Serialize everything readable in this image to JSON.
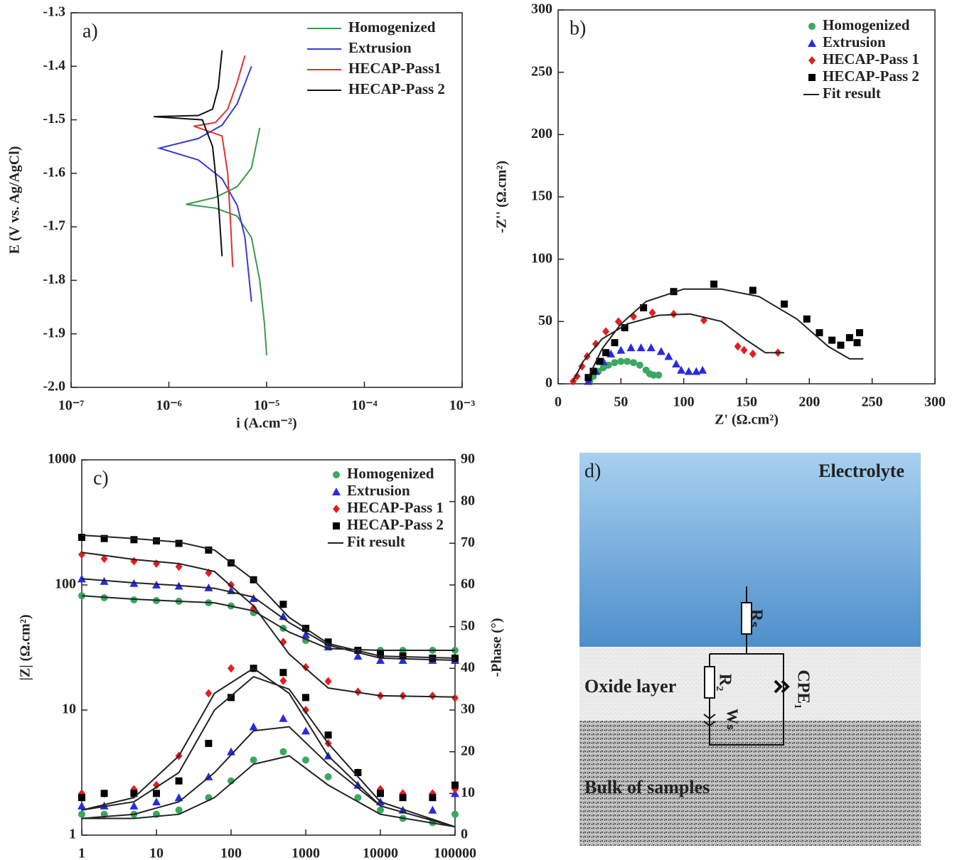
{
  "chart_data": [
    {
      "type": "line",
      "panel_label": "a)",
      "xscale": "log",
      "legend": "upper right",
      "x_label": "i (A.cm⁻²)",
      "y_label": "E (V vs. Ag/AgCl)",
      "xlim": [
        1e-07,
        0.001
      ],
      "ylim": [
        -2,
        -1.3
      ],
      "xticks": [
        {
          "value": 1e-07,
          "label": "10⁻⁷"
        },
        {
          "value": 1e-06,
          "label": "10⁻⁶"
        },
        {
          "value": 1e-05,
          "label": "10⁻⁵"
        },
        {
          "value": 0.0001,
          "label": "10⁻⁴"
        },
        {
          "value": 0.001,
          "label": "10⁻³"
        }
      ],
      "yticks": [
        {
          "value": -2,
          "label": "-2.0"
        },
        -1.9,
        -1.8,
        -1.7,
        -1.6,
        -1.5,
        -1.4,
        -1.3
      ],
      "series": [
        {
          "name": "Homogenized",
          "color": "#3a9a4a",
          "x": [
            8.5e-06,
            7e-06,
            5e-06,
            3e-06,
            1.5e-06,
            3e-06,
            5e-06,
            7e-06,
            8.5e-06,
            9.5e-06,
            1e-05
          ],
          "values": [
            -1.515,
            -1.59,
            -1.625,
            -1.645,
            -1.658,
            -1.665,
            -1.68,
            -1.72,
            -1.8,
            -1.88,
            -1.94
          ]
        },
        {
          "name": "Extrusion",
          "color": "#3a3ad0",
          "x": [
            7e-06,
            5e-06,
            3.5e-06,
            2e-06,
            8e-07,
            2e-06,
            3.5e-06,
            5e-06,
            6e-06,
            7e-06
          ],
          "values": [
            -1.4,
            -1.47,
            -1.51,
            -1.535,
            -1.553,
            -1.575,
            -1.61,
            -1.66,
            -1.72,
            -1.84
          ]
        },
        {
          "name": "HECAP-Pass1",
          "color": "#e03030",
          "x": [
            6e-06,
            5e-06,
            4e-06,
            3e-06,
            1.8e-06,
            3.5e-06,
            4e-06,
            4.3e-06,
            4.5e-06
          ],
          "values": [
            -1.38,
            -1.43,
            -1.48,
            -1.505,
            -1.512,
            -1.53,
            -1.6,
            -1.7,
            -1.775
          ]
        },
        {
          "name": "HECAP-Pass 2",
          "color": "#111111",
          "x": [
            3.5e-06,
            3.2e-06,
            2.8e-06,
            2e-06,
            7e-07,
            2.2e-06,
            2.8e-06,
            3.2e-06,
            3.5e-06
          ],
          "values": [
            -1.37,
            -1.44,
            -1.48,
            -1.492,
            -1.494,
            -1.5,
            -1.55,
            -1.65,
            -1.755
          ]
        }
      ]
    },
    {
      "type": "scatter",
      "panel_label": "b)",
      "legend": "upper right",
      "x_label": "Z' (Ω.cm²)",
      "y_label": "-Z'' (Ω.cm²)",
      "xlim": [
        0,
        300
      ],
      "ylim": [
        0,
        300
      ],
      "xticks": [
        0,
        50,
        100,
        150,
        200,
        250,
        300
      ],
      "yticks": [
        0,
        50,
        100,
        150,
        200,
        250,
        300
      ],
      "series": [
        {
          "name": "Homogenized",
          "color": "#3aa860",
          "marker": "circle",
          "x": [
            25,
            28,
            32,
            36,
            40,
            45,
            50,
            55,
            60,
            65,
            70,
            73,
            76,
            80
          ],
          "values": [
            2,
            6,
            10,
            13,
            15,
            17,
            18,
            18,
            17,
            15,
            11,
            8,
            7,
            7
          ]
        },
        {
          "name": "Extrusion",
          "color": "#2a2ae0",
          "marker": "triangle",
          "x": [
            24,
            30,
            36,
            42,
            50,
            58,
            66,
            74,
            82,
            88,
            94,
            98,
            104,
            110,
            115
          ],
          "values": [
            2,
            10,
            18,
            24,
            27,
            29,
            29,
            29,
            26,
            22,
            16,
            11,
            10,
            10,
            11
          ]
        },
        {
          "name": "HECAP-Pass 1",
          "color": "#e02020",
          "marker": "diamond",
          "x": [
            12,
            15,
            19,
            23,
            30,
            38,
            48,
            60,
            75,
            92,
            116,
            143,
            148,
            155,
            175
          ],
          "values": [
            2,
            6,
            14,
            22,
            32,
            42,
            50,
            54,
            57,
            56,
            51,
            30,
            27,
            24,
            25
          ]
        },
        {
          "name": "HECAP-Pass 2",
          "color": "#000000",
          "marker": "square",
          "x": [
            24,
            28,
            33,
            38,
            45,
            53,
            68,
            92,
            124,
            155,
            180,
            198,
            208,
            218,
            225,
            232,
            238,
            240
          ],
          "values": [
            5,
            10,
            18,
            25,
            33,
            45,
            61,
            74,
            80,
            75,
            64,
            52,
            41,
            35,
            31,
            37,
            33,
            41
          ]
        },
        {
          "name": "Fit result",
          "color": "#222222",
          "marker": "none",
          "x": [
            24,
            35,
            50,
            70,
            100,
            130,
            160,
            190,
            215,
            232,
            243,
            null,
            12,
            20,
            35,
            55,
            80,
            105,
            130,
            150,
            165,
            180
          ],
          "values": [
            5,
            28,
            48,
            66,
            76,
            76,
            70,
            52,
            30,
            20,
            20,
            null,
            2,
            18,
            36,
            48,
            55,
            56,
            50,
            35,
            25,
            25
          ]
        }
      ]
    },
    {
      "type": "scatter",
      "panel_label": "c)",
      "xscale": "log",
      "yscale": "log",
      "legend": "upper right",
      "y_label": "|Z| (Ω.cm²)",
      "y2_label": "-Phase (°)",
      "xlim": [
        1,
        100000
      ],
      "ylim": [
        1,
        1000
      ],
      "y2lim": [
        0,
        90
      ],
      "xticks": [
        1,
        10,
        100,
        1000,
        10000,
        100000
      ],
      "yticks": [
        1,
        10,
        100,
        1000
      ],
      "y2ticks": [
        0,
        10,
        20,
        30,
        40,
        50,
        60,
        70,
        80,
        90
      ],
      "x": [
        1,
        2,
        5,
        10,
        20,
        50,
        100,
        200,
        500,
        1000,
        2000,
        5000,
        10000,
        20000,
        50000,
        100000
      ],
      "series": [
        {
          "name": "Homogenized",
          "color": "#3aa860",
          "marker": "circle",
          "values": [
            82,
            79,
            76,
            75,
            74,
            72,
            68,
            60,
            45,
            36,
            32,
            30,
            30,
            30,
            30,
            30
          ],
          "values_y2": [
            5,
            5,
            5,
            5,
            6,
            9,
            13,
            18,
            20,
            18,
            14,
            9,
            6,
            4,
            3,
            5
          ]
        },
        {
          "name": "Extrusion",
          "color": "#2a2ae0",
          "marker": "triangle",
          "values": [
            112,
            107,
            103,
            100,
            98,
            95,
            90,
            78,
            56,
            40,
            32,
            27,
            25,
            25,
            25,
            25
          ],
          "values_y2": [
            7,
            7,
            7,
            8,
            9,
            14,
            20,
            26,
            28,
            25,
            19,
            12,
            8,
            6,
            6,
            10
          ]
        },
        {
          "name": "HECAP-Pass 1",
          "color": "#e02020",
          "marker": "diamond",
          "values": [
            175,
            162,
            155,
            148,
            140,
            125,
            100,
            65,
            35,
            22,
            17,
            14,
            13,
            13,
            13,
            12.5
          ],
          "values_y2": [
            10,
            10,
            11,
            12,
            19,
            34,
            40,
            40,
            37,
            30,
            22,
            15,
            11,
            10,
            10,
            11
          ]
        },
        {
          "name": "HECAP-Pass 2",
          "color": "#000000",
          "marker": "square",
          "values": [
            240,
            235,
            230,
            225,
            215,
            190,
            150,
            110,
            70,
            45,
            35,
            30,
            28,
            27,
            26,
            26
          ],
          "values_y2": [
            9,
            10,
            10,
            10,
            13,
            22,
            33,
            40,
            39,
            33,
            24,
            15,
            10,
            9,
            9,
            12
          ]
        },
        {
          "name": "Fit result",
          "color": "#222222",
          "marker": "none",
          "x": [
            1,
            5,
            20,
            60,
            200,
            600,
            2000,
            10000,
            100000,
            null,
            1,
            5,
            20,
            60,
            200,
            600,
            2000,
            10000,
            100000,
            null,
            1,
            5,
            20,
            60,
            200,
            600,
            2000,
            10000,
            100000,
            null,
            1,
            5,
            20,
            60,
            200,
            600,
            2000,
            10000,
            100000
          ],
          "values": [
            82,
            77,
            74,
            72,
            62,
            42,
            31,
            30,
            30,
            null,
            112,
            104,
            99,
            94,
            80,
            50,
            33,
            26,
            25,
            null,
            182,
            160,
            148,
            128,
            68,
            28,
            15,
            13,
            12.7,
            null,
            250,
            235,
            220,
            190,
            110,
            55,
            34,
            27,
            26
          ],
          "values_y2": [
            4,
            4,
            5,
            9,
            17,
            19,
            12,
            5,
            2,
            null,
            4,
            5,
            8,
            15,
            25,
            26,
            17,
            7,
            2,
            null,
            6,
            9,
            19,
            34,
            40,
            34,
            19,
            7,
            2,
            null,
            6,
            8,
            15,
            30,
            38,
            35,
            22,
            8,
            2
          ]
        }
      ]
    }
  ],
  "diagram": {
    "panel_label": "d)",
    "layers": [
      "Electrolyte",
      "Oxide layer",
      "Bulk of samples"
    ],
    "elements": [
      "Rₛ",
      "R₂",
      "Wₛ",
      "CPE₁"
    ]
  }
}
